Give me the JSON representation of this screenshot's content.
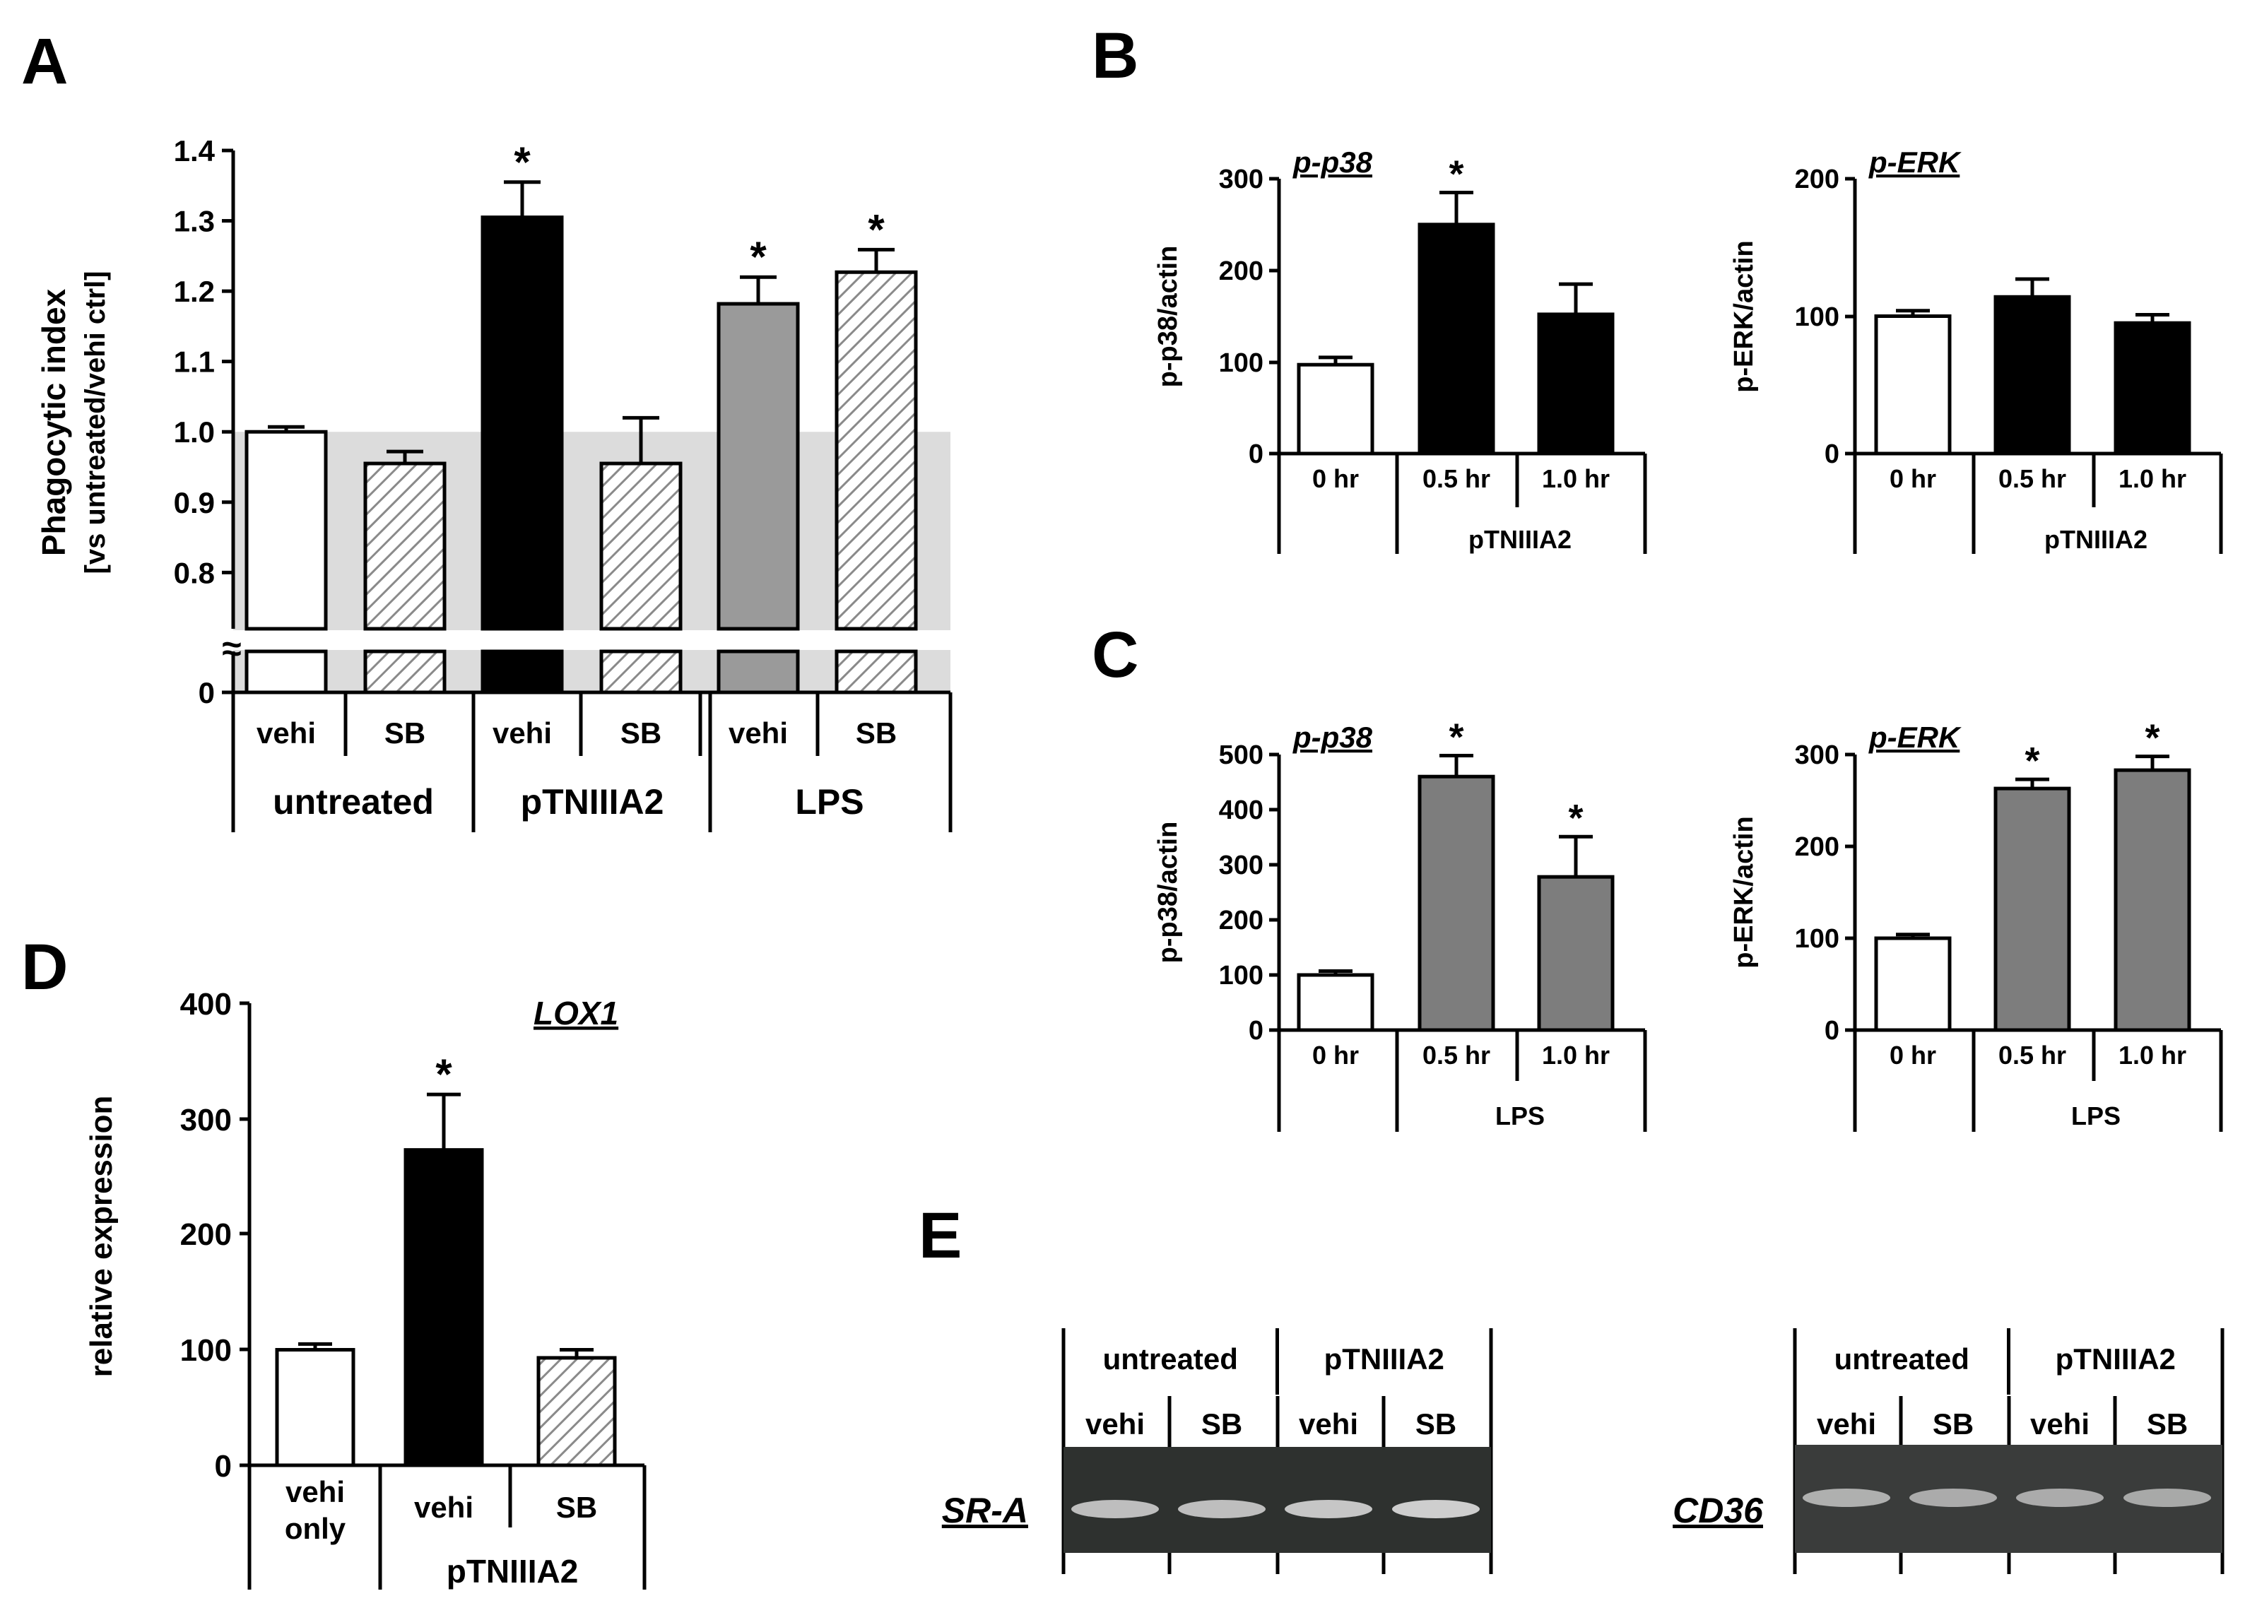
{
  "panels": {
    "A": "A",
    "B": "B",
    "C": "C",
    "D": "D",
    "E": "E"
  },
  "sig_mark": "*",
  "chart_data": [
    {
      "id": "A",
      "type": "bar",
      "ylabel": "Phagocytic index",
      "ylabel2": "[vs untreated/vehi ctrl]",
      "yticks": [
        "1.4",
        "1.3",
        "1.2",
        "1.1",
        "1.0",
        "0.9",
        "0.8",
        "0"
      ],
      "ylim": [
        0.72,
        1.4
      ],
      "axis_break": "≈",
      "categories": [
        "vehi",
        "SB",
        "vehi",
        "SB",
        "vehi",
        "SB"
      ],
      "groups": [
        "untreated",
        "pTNIIIA2",
        "LPS"
      ],
      "values": [
        1.0,
        0.955,
        1.305,
        0.955,
        1.182,
        1.227
      ],
      "errors": [
        0.007,
        0.017,
        0.05,
        0.065,
        0.038,
        0.032
      ],
      "fills": [
        "white",
        "hatch",
        "black",
        "hatch",
        "gray",
        "hatch"
      ],
      "significant": [
        false,
        false,
        true,
        false,
        true,
        true
      ],
      "shaded_band_top": 1.0
    },
    {
      "id": "B1",
      "type": "bar",
      "title": "p-p38",
      "ylabel": "p-p38/actin",
      "yticks": [
        "300",
        "200",
        "100",
        "0"
      ],
      "ylim": [
        0,
        300
      ],
      "categories": [
        "0 hr",
        "0.5 hr",
        "1.0 hr"
      ],
      "group": "pTNIIIA2",
      "values": [
        97,
        250,
        152
      ],
      "errors": [
        8,
        35,
        33
      ],
      "fills": [
        "white",
        "black",
        "black"
      ],
      "significant": [
        false,
        true,
        false
      ]
    },
    {
      "id": "B2",
      "type": "bar",
      "title": "p-ERK",
      "ylabel": "p-ERK/actin",
      "yticks": [
        "200",
        "100",
        "0"
      ],
      "ylim": [
        0,
        200
      ],
      "categories": [
        "0 hr",
        "0.5 hr",
        "1.0 hr"
      ],
      "group": "pTNIIIA2",
      "values": [
        100,
        114,
        95
      ],
      "errors": [
        4,
        13,
        6
      ],
      "fills": [
        "white",
        "black",
        "black"
      ],
      "significant": [
        false,
        false,
        false
      ]
    },
    {
      "id": "C1",
      "type": "bar",
      "title": "p-p38",
      "ylabel": "p-p38/actin",
      "yticks": [
        "500",
        "400",
        "300",
        "200",
        "100",
        "0"
      ],
      "ylim": [
        0,
        500
      ],
      "categories": [
        "0 hr",
        "0.5 hr",
        "1.0 hr"
      ],
      "group": "LPS",
      "values": [
        100,
        460,
        278
      ],
      "errors": [
        7,
        38,
        73
      ],
      "fills": [
        "white",
        "gray",
        "gray"
      ],
      "significant": [
        false,
        true,
        true
      ]
    },
    {
      "id": "C2",
      "type": "bar",
      "title": "p-ERK",
      "ylabel": "p-ERK/actin",
      "yticks": [
        "300",
        "200",
        "100",
        "0"
      ],
      "ylim": [
        0,
        300
      ],
      "categories": [
        "0 hr",
        "0.5 hr",
        "1.0 hr"
      ],
      "group": "LPS",
      "values": [
        100,
        263,
        283
      ],
      "errors": [
        4,
        10,
        15
      ],
      "fills": [
        "white",
        "gray",
        "gray"
      ],
      "significant": [
        false,
        true,
        true
      ]
    },
    {
      "id": "D",
      "type": "bar",
      "title": "LOX1",
      "ylabel": "relative expression",
      "yticks": [
        "400",
        "300",
        "200",
        "100",
        "0"
      ],
      "ylim": [
        0,
        400
      ],
      "categories": [
        "vehi\nonly",
        "vehi",
        "SB"
      ],
      "group": "pTNIIIA2",
      "values": [
        100,
        273,
        93
      ],
      "errors": [
        5,
        48,
        7
      ],
      "fills": [
        "white",
        "black",
        "hatch"
      ],
      "significant": [
        false,
        true,
        false
      ]
    }
  ],
  "gels": [
    {
      "id": "E1",
      "label": "SR-A",
      "groups": [
        "untreated",
        "pTNIIIA2"
      ],
      "lanes": [
        "vehi",
        "SB",
        "vehi",
        "SB"
      ],
      "band_intensity": [
        0.85,
        0.85,
        0.9,
        0.95
      ]
    },
    {
      "id": "E2",
      "label": "CD36",
      "groups": [
        "untreated",
        "pTNIIIA2"
      ],
      "lanes": [
        "vehi",
        "SB",
        "vehi",
        "SB"
      ],
      "band_intensity": [
        0.75,
        0.72,
        0.72,
        0.7
      ]
    }
  ],
  "colors": {
    "black": "#000000",
    "gray": "#9a9a9a",
    "gray_c": "#7d7d7d",
    "band": "#d7d7d7",
    "gel": "#2e312f",
    "shade": "#dcdcdc"
  }
}
